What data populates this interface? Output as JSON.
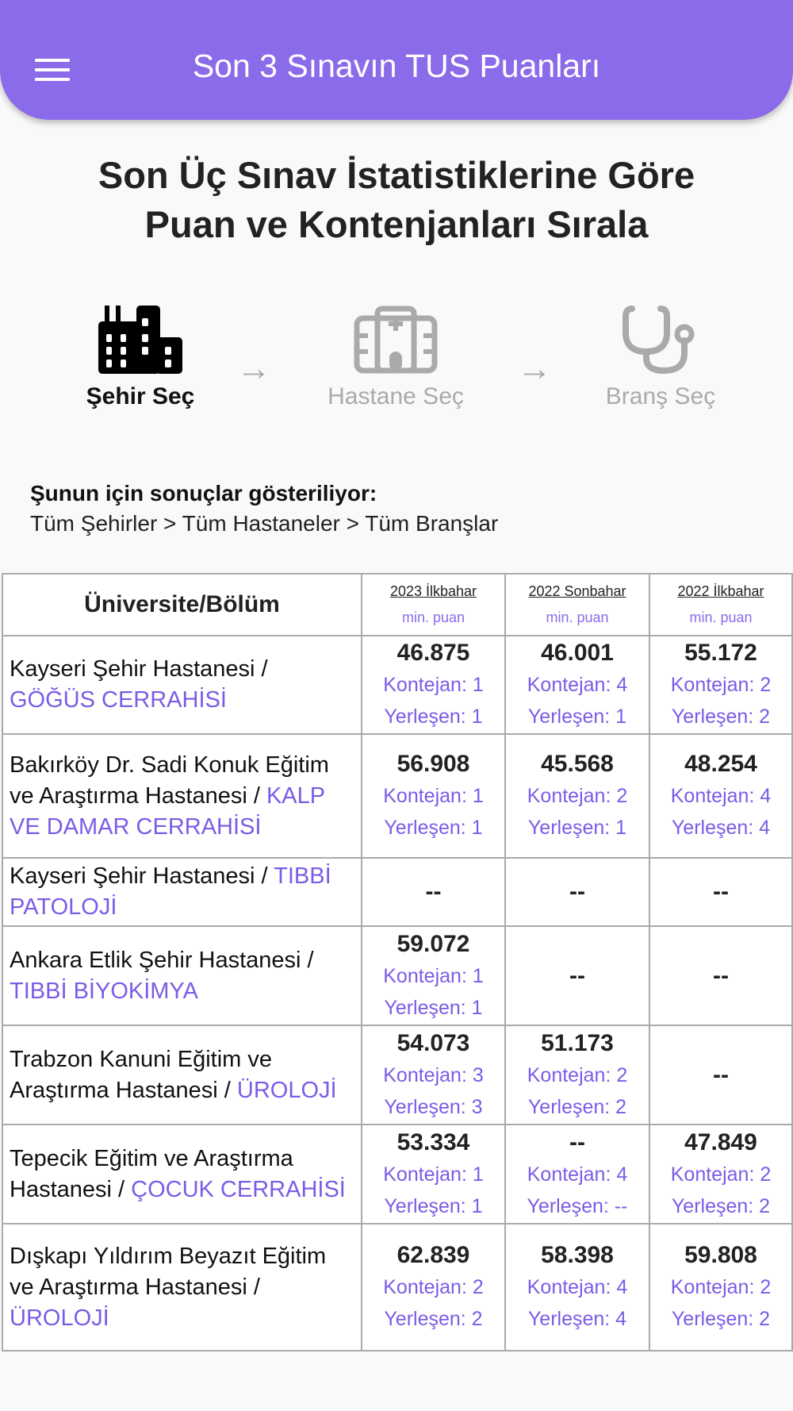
{
  "appbar": {
    "title": "Son 3 Sınavın TUS Puanları",
    "menu_icon": "hamburger-icon",
    "color": "#8b6be9"
  },
  "heading": {
    "line1": "Son Üç Sınav İstatistiklerine Göre",
    "line2": "Puan ve Kontenjanları Sırala"
  },
  "steps": [
    {
      "label": "Şehir Seç",
      "icon": "city-icon",
      "active": true
    },
    {
      "label": "Hastane Seç",
      "icon": "hospital-icon",
      "active": false
    },
    {
      "label": "Branş Seç",
      "icon": "stethoscope-icon",
      "active": false
    }
  ],
  "filter": {
    "title": "Şunun için sonuçlar gösteriliyor:",
    "path": "Tüm Şehirler > Tüm Hastaneler > Tüm Branşlar"
  },
  "table": {
    "header": {
      "first": "Üniversite/Bölüm",
      "columns": [
        {
          "term": "2023 İlkbahar",
          "sub": "min. puan"
        },
        {
          "term": "2022 Sonbahar",
          "sub": "min. puan"
        },
        {
          "term": "2022 İlkbahar",
          "sub": "min. puan"
        }
      ]
    },
    "rows": [
      {
        "hospital": "Kayseri Şehir Hastanesi  / ",
        "branch": "GÖĞÜS CERRAHİSİ",
        "cells": [
          {
            "score": "46.875",
            "k": "Kontejan: 1",
            "y": "Yerleşen: 1"
          },
          {
            "score": "46.001",
            "k": "Kontejan: 4",
            "y": "Yerleşen: 1"
          },
          {
            "score": "55.172",
            "k": "Kontejan: 2",
            "y": "Yerleşen: 2"
          }
        ]
      },
      {
        "hospital": "Bakırköy Dr. Sadi Konuk Eğitim ve Araştırma Hastanesi  / ",
        "branch": "KALP VE DAMAR CERRAHİSİ",
        "cells": [
          {
            "score": "56.908",
            "k": "Kontejan: 1",
            "y": "Yerleşen: 1"
          },
          {
            "score": "45.568",
            "k": "Kontejan: 2",
            "y": "Yerleşen: 1"
          },
          {
            "score": "48.254",
            "k": "Kontejan: 4",
            "y": "Yerleşen: 4"
          }
        ]
      },
      {
        "hospital": "Kayseri Şehir Hastanesi  / ",
        "branch": "TIBBİ PATOLOJİ",
        "cells": [
          {
            "dash": "--"
          },
          {
            "dash": "--"
          },
          {
            "dash": "--"
          }
        ]
      },
      {
        "hospital": "Ankara Etlik Şehir Hastanesi / ",
        "branch": "TIBBİ BİYOKİMYA",
        "cells": [
          {
            "score": "59.072",
            "k": "Kontejan: 1",
            "y": "Yerleşen: 1"
          },
          {
            "dash": "--"
          },
          {
            "dash": "--"
          }
        ]
      },
      {
        "hospital": "Trabzon Kanuni Eğitim ve Araştırma Hastanesi  / ",
        "branch": "ÜROLOJİ",
        "cells": [
          {
            "score": "54.073",
            "k": "Kontejan: 3",
            "y": "Yerleşen: 3"
          },
          {
            "score": "51.173",
            "k": "Kontejan: 2",
            "y": "Yerleşen: 2"
          },
          {
            "dash": "--"
          }
        ]
      },
      {
        "hospital": "Tepecik Eğitim ve Araştırma Hastanesi  / ",
        "branch": "ÇOCUK CERRAHİSİ",
        "cells": [
          {
            "score": "53.334",
            "k": "Kontejan: 1",
            "y": "Yerleşen: 1"
          },
          {
            "score": "--",
            "k": "Kontejan: 4",
            "y": "Yerleşen: --"
          },
          {
            "score": "47.849",
            "k": "Kontejan: 2",
            "y": "Yerleşen: 2"
          }
        ]
      },
      {
        "hospital": "Dışkapı Yıldırım Beyazıt Eğitim ve Araştırma Hastanesi / ",
        "branch": "ÜROLOJİ",
        "cells": [
          {
            "score": "62.839",
            "k": "Kontejan: 2",
            "y": "Yerleşen: 2"
          },
          {
            "score": "58.398",
            "k": "Kontejan: 4",
            "y": "Yerleşen: 4"
          },
          {
            "score": "59.808",
            "k": "Kontejan: 2",
            "y": "Yerleşen: 2"
          }
        ]
      }
    ]
  }
}
